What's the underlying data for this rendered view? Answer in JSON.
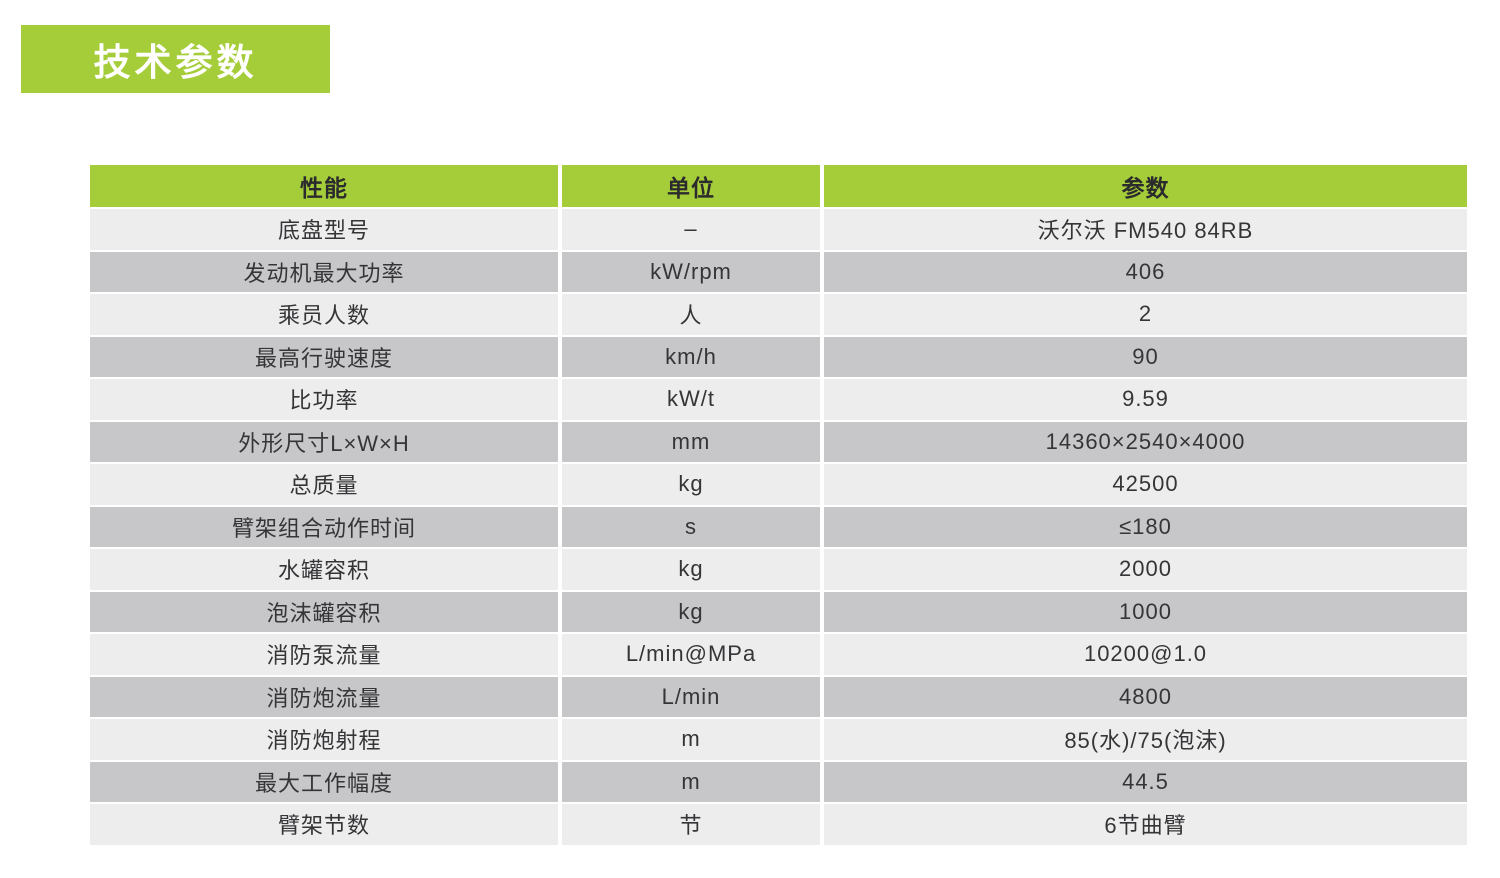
{
  "title": "技术参数",
  "colors": {
    "green": "#a5cd39",
    "row_light": "#ededee",
    "row_dark": "#c7c7c9",
    "text": "#353537",
    "title_text": "#ffffff"
  },
  "table": {
    "headers": [
      "性能",
      "单位",
      "参数"
    ],
    "rows": [
      {
        "name": "底盘型号",
        "unit": "–",
        "value": "沃尔沃 FM540 84RB"
      },
      {
        "name": "发动机最大功率",
        "unit": "kW/rpm",
        "value": "406"
      },
      {
        "name": "乘员人数",
        "unit": "人",
        "value": "2"
      },
      {
        "name": "最高行驶速度",
        "unit": "km/h",
        "value": "90"
      },
      {
        "name": "比功率",
        "unit": "kW/t",
        "value": "9.59"
      },
      {
        "name": "外形尺寸L×W×H",
        "unit": "mm",
        "value": "14360×2540×4000"
      },
      {
        "name": "总质量",
        "unit": "kg",
        "value": "42500"
      },
      {
        "name": "臂架组合动作时间",
        "unit": "s",
        "value": "≤180"
      },
      {
        "name": "水罐容积",
        "unit": "kg",
        "value": "2000"
      },
      {
        "name": "泡沫罐容积",
        "unit": "kg",
        "value": "1000"
      },
      {
        "name": "消防泵流量",
        "unit": "L/min@MPa",
        "value": "10200@1.0"
      },
      {
        "name": "消防炮流量",
        "unit": "L/min",
        "value": "4800"
      },
      {
        "name": "消防炮射程",
        "unit": "m",
        "value": "85(水)/75(泡沫)"
      },
      {
        "name": "最大工作幅度",
        "unit": "m",
        "value": "44.5"
      },
      {
        "name": "臂架节数",
        "unit": "节",
        "value": "6节曲臂"
      }
    ]
  }
}
